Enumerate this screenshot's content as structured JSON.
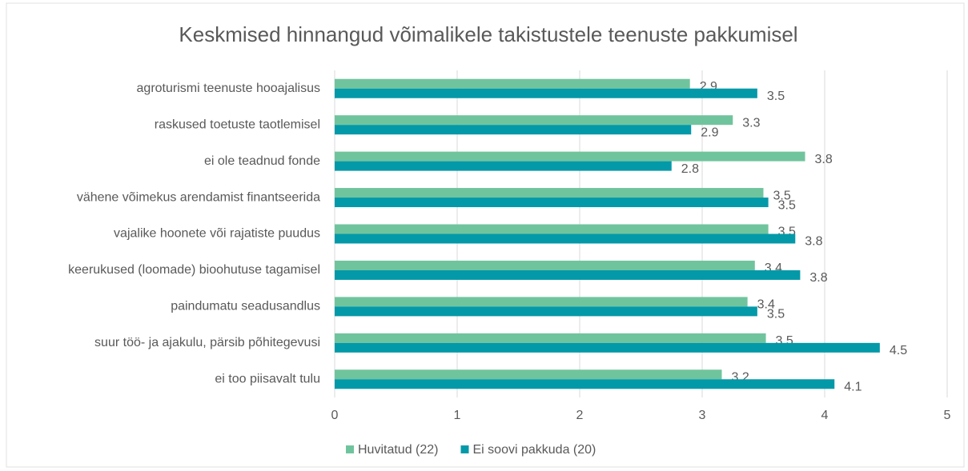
{
  "chart_data": {
    "type": "hbar",
    "title": "Keskmised hinnangud võimalikele takistustele teenuste pakkumisel",
    "categories": [
      "agroturismi teenuste hooajalisus",
      "raskused toetuste taotlemisel",
      "ei ole teadnud fonde",
      "vähene võimekus arendamist finantseerida",
      "vajalike hoonete või rajatiste puudus",
      "keerukused (loomade) bioohutuse tagamisel",
      "paindumatu seadusandlus",
      "suur töö- ja ajakulu, pärsib põhitegevusi",
      "ei too piisavalt tulu"
    ],
    "series": [
      {
        "name": "Huvitatud (22)",
        "color": "#70c49d",
        "values": [
          2.9,
          3.25,
          3.84,
          3.5,
          3.54,
          3.43,
          3.37,
          3.52,
          3.16
        ],
        "value_labels": [
          "2.9",
          "3.3",
          "3.8",
          "3.5",
          "3.5",
          "3.4",
          "3.4",
          "3.5",
          "3.2"
        ]
      },
      {
        "name": "Ei soovi pakkuda (20)",
        "color": "#0399a8",
        "values": [
          3.45,
          2.91,
          2.75,
          3.54,
          3.76,
          3.8,
          3.45,
          4.45,
          4.08
        ],
        "value_labels": [
          "3.5",
          "2.9",
          "2.8",
          "3.5",
          "3.8",
          "3.8",
          "3.5",
          "4.5",
          "4.1"
        ]
      }
    ],
    "xlim": [
      0,
      5
    ],
    "xticks": [
      0,
      1,
      2,
      3,
      4,
      5
    ],
    "grid": true,
    "legend": "bottom"
  }
}
